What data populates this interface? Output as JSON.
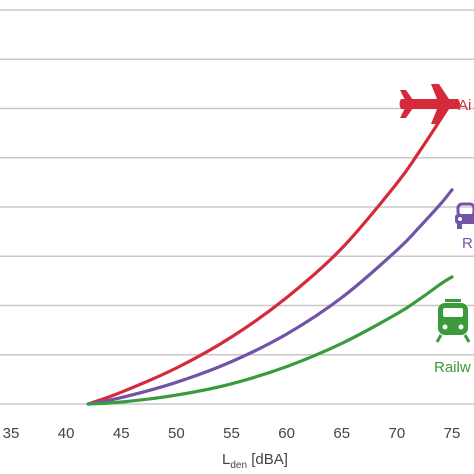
{
  "chart_data": {
    "type": "line",
    "xlabel": {
      "main": "L",
      "sub": "den",
      "unit": " [dBA]"
    },
    "ylabel": "",
    "xlim": [
      34,
      77
    ],
    "xticks": [
      35,
      40,
      45,
      50,
      55,
      60,
      65,
      70,
      75
    ],
    "ylim": [
      0,
      8
    ],
    "ygrid": [
      1,
      2,
      3,
      4,
      5,
      6,
      7,
      8
    ],
    "grid": "horizontal",
    "series": [
      {
        "name": "Ai",
        "color": "#d42a3a",
        "icon": "airplane-icon",
        "points": [
          [
            42,
            0
          ],
          [
            45,
            0.24
          ],
          [
            50,
            0.73
          ],
          [
            55,
            1.36
          ],
          [
            60,
            2.16
          ],
          [
            65,
            3.16
          ],
          [
            70,
            4.48
          ],
          [
            72,
            5.11
          ],
          [
            74,
            5.79
          ],
          [
            75,
            6.15
          ]
        ]
      },
      {
        "name": "R",
        "color": "#7353a8",
        "icon": "car-icon",
        "points": [
          [
            42,
            0
          ],
          [
            45,
            0.13
          ],
          [
            50,
            0.44
          ],
          [
            55,
            0.86
          ],
          [
            60,
            1.42
          ],
          [
            65,
            2.16
          ],
          [
            70,
            3.12
          ],
          [
            72,
            3.58
          ],
          [
            74,
            4.07
          ],
          [
            75,
            4.35
          ]
        ]
      },
      {
        "name": "Railw",
        "color": "#3b9a3b",
        "icon": "train-icon",
        "points": [
          [
            42,
            0
          ],
          [
            45,
            0.04
          ],
          [
            50,
            0.18
          ],
          [
            55,
            0.41
          ],
          [
            60,
            0.76
          ],
          [
            65,
            1.23
          ],
          [
            70,
            1.83
          ],
          [
            72,
            2.12
          ],
          [
            74,
            2.44
          ],
          [
            75,
            2.58
          ]
        ]
      }
    ]
  }
}
